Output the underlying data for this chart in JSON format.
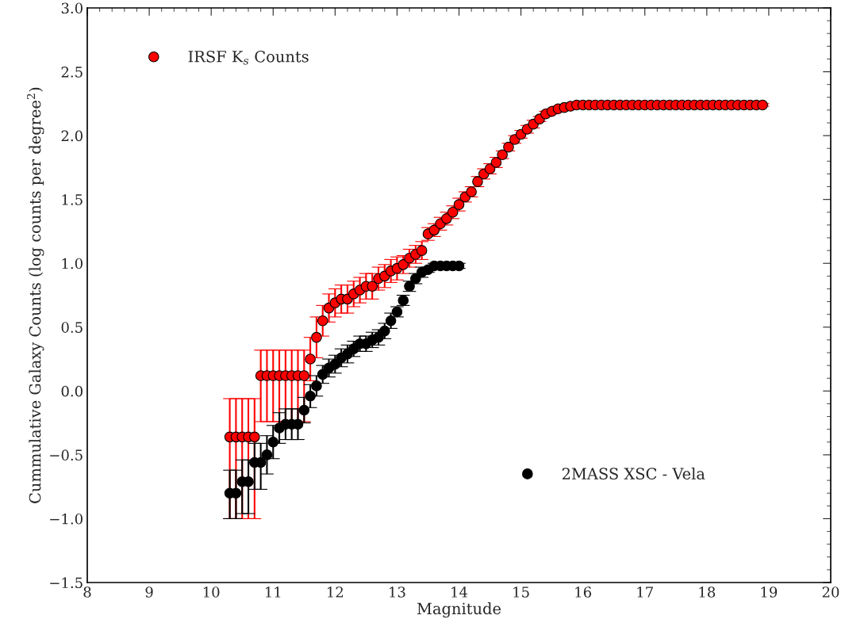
{
  "chart_data": {
    "type": "scatter",
    "xlabel": "Magnitude",
    "ylabel": "Cummulative Galaxy Counts (log counts per degree$^{2}$)",
    "xlim": [
      8,
      20
    ],
    "xticks": [
      8,
      9,
      10,
      11,
      12,
      13,
      14,
      15,
      16,
      17,
      18,
      19,
      20
    ],
    "ylim": [
      -1.5,
      3.0
    ],
    "yticks": [
      {
        "value": -1.5,
        "label": "−1.5"
      },
      {
        "value": -1.0,
        "label": "−1.0"
      },
      {
        "value": -0.5,
        "label": "−0.5"
      },
      {
        "value": 0,
        "label": "0.0"
      },
      0.5,
      {
        "value": 1,
        "label": "1.0"
      },
      1.5,
      {
        "value": 2,
        "label": "2.0"
      },
      2.5,
      {
        "value": 3,
        "label": "3.0"
      }
    ],
    "marker": "circle",
    "grid": false,
    "legend": "top left",
    "series": [
      {
        "name": "IRSF K$_{s}$ Counts",
        "color": "#ff0000",
        "x": [
          10.3,
          10.4,
          10.5,
          10.6,
          10.7,
          10.8,
          10.9,
          11.0,
          11.1,
          11.2,
          11.3,
          11.4,
          11.5,
          11.6,
          11.7,
          11.8,
          11.9,
          12.0,
          12.1,
          12.2,
          12.3,
          12.4,
          12.5,
          12.6,
          12.7,
          12.8,
          12.9,
          13.0,
          13.1,
          13.2,
          13.3,
          13.4,
          13.5,
          13.6,
          13.7,
          13.8,
          13.9,
          14.0,
          14.1,
          14.2,
          14.3,
          14.4,
          14.5,
          14.6,
          14.7,
          14.8,
          14.9,
          15.0,
          15.1,
          15.2,
          15.3,
          15.4,
          15.5,
          15.6,
          15.7,
          15.8,
          15.9,
          16.0,
          16.1,
          16.2,
          16.3,
          16.4,
          16.5,
          16.6,
          16.7,
          16.8,
          16.9,
          17.0,
          17.1,
          17.2,
          17.3,
          17.4,
          17.5,
          17.6,
          17.7,
          17.8,
          17.9,
          18.0,
          18.1,
          18.2,
          18.3,
          18.4,
          18.5,
          18.6,
          18.7,
          18.8,
          18.9
        ],
        "values": [
          -0.36,
          -0.36,
          -0.36,
          -0.36,
          -0.36,
          0.12,
          0.12,
          0.12,
          0.12,
          0.12,
          0.12,
          0.12,
          0.12,
          0.25,
          0.42,
          0.55,
          0.65,
          0.69,
          0.72,
          0.72,
          0.76,
          0.79,
          0.82,
          0.82,
          0.88,
          0.9,
          0.94,
          0.96,
          0.99,
          1.04,
          1.07,
          1.1,
          1.23,
          1.26,
          1.31,
          1.35,
          1.4,
          1.46,
          1.52,
          1.56,
          1.64,
          1.7,
          1.74,
          1.79,
          1.85,
          1.91,
          1.97,
          2.01,
          2.05,
          2.09,
          2.13,
          2.17,
          2.19,
          2.21,
          2.22,
          2.23,
          2.24,
          2.24,
          2.24,
          2.24,
          2.24,
          2.24,
          2.24,
          2.24,
          2.24,
          2.24,
          2.24,
          2.24,
          2.24,
          2.24,
          2.24,
          2.24,
          2.24,
          2.24,
          2.24,
          2.24,
          2.24,
          2.24,
          2.24,
          2.24,
          2.24,
          2.24,
          2.24,
          2.24,
          2.24,
          2.24,
          2.24
        ],
        "errors": [
          [
            -1.0,
            -0.06
          ],
          [
            -1.0,
            -0.06
          ],
          [
            -1.0,
            -0.06
          ],
          [
            -1.0,
            -0.06
          ],
          [
            -1.0,
            -0.06
          ],
          [
            -0.24,
            0.32
          ],
          [
            -0.24,
            0.32
          ],
          [
            -0.24,
            0.32
          ],
          [
            -0.24,
            0.32
          ],
          [
            -0.24,
            0.32
          ],
          [
            -0.24,
            0.32
          ],
          [
            -0.24,
            0.32
          ],
          [
            -0.24,
            0.32
          ],
          0.17,
          0.16,
          0.12,
          0.11,
          0.11,
          0.11,
          0.11,
          0.1,
          0.1,
          0.1,
          0.1,
          0.09,
          0.09,
          0.09,
          0.09,
          0.07,
          0.07,
          0.07,
          0.07,
          0.05,
          0.05,
          0.05,
          0.05,
          0.05,
          0.05,
          0.04,
          0.04,
          0.04,
          0.04,
          0.04,
          0.04,
          0.03,
          0.03,
          0.03,
          0.03,
          0.03,
          0.03,
          0.02,
          0.02,
          0.02,
          0.02,
          0.02,
          0.02,
          0.02,
          0.01,
          0.01,
          0.01,
          0.01,
          0.01,
          0.01,
          0.01,
          0.01,
          0.01,
          0.01,
          0.01,
          0.01,
          0.01,
          0.01,
          0.01,
          0.01,
          0.01,
          0.01,
          0.01,
          0.01,
          0.01,
          0.01,
          0.01,
          0.01,
          0.01,
          0.01,
          0.01,
          0.01,
          0.01,
          0.01
        ]
      },
      {
        "name": "2MASS XSC - Vela",
        "color": "#000000",
        "x": [
          10.3,
          10.4,
          10.5,
          10.6,
          10.7,
          10.8,
          10.9,
          11.0,
          11.1,
          11.2,
          11.3,
          11.4,
          11.5,
          11.6,
          11.7,
          11.8,
          11.9,
          12.0,
          12.1,
          12.2,
          12.3,
          12.4,
          12.5,
          12.6,
          12.7,
          12.8,
          12.9,
          13.0,
          13.1,
          13.2,
          13.3,
          13.4,
          13.5,
          13.6,
          13.7,
          13.8,
          13.9,
          14.0
        ],
        "values": [
          -0.8,
          -0.8,
          -0.71,
          -0.71,
          -0.56,
          -0.56,
          -0.5,
          -0.4,
          -0.29,
          -0.26,
          -0.26,
          -0.26,
          -0.15,
          -0.04,
          0.04,
          0.13,
          0.18,
          0.21,
          0.26,
          0.29,
          0.33,
          0.37,
          0.37,
          0.4,
          0.42,
          0.47,
          0.55,
          0.62,
          0.71,
          0.82,
          0.88,
          0.93,
          0.95,
          0.98,
          0.98,
          0.98,
          0.98,
          0.98
        ],
        "errors": [
          [
            -1.0,
            -0.62
          ],
          [
            -1.0,
            -0.62
          ],
          [
            -0.96,
            -0.54
          ],
          [
            -0.96,
            -0.54
          ],
          [
            -0.77,
            -0.41
          ],
          [
            -0.77,
            -0.41
          ],
          0.15,
          0.13,
          0.12,
          0.12,
          0.12,
          0.12,
          0.1,
          0.09,
          0.08,
          0.07,
          0.07,
          0.07,
          0.07,
          0.07,
          0.06,
          0.06,
          0.06,
          0.06,
          0.06,
          0.06,
          0.06,
          0.04,
          0.04,
          0.04,
          0.04,
          0.04,
          0.02,
          0.02,
          0.02,
          0.02,
          0.02,
          0.02
        ]
      }
    ]
  }
}
